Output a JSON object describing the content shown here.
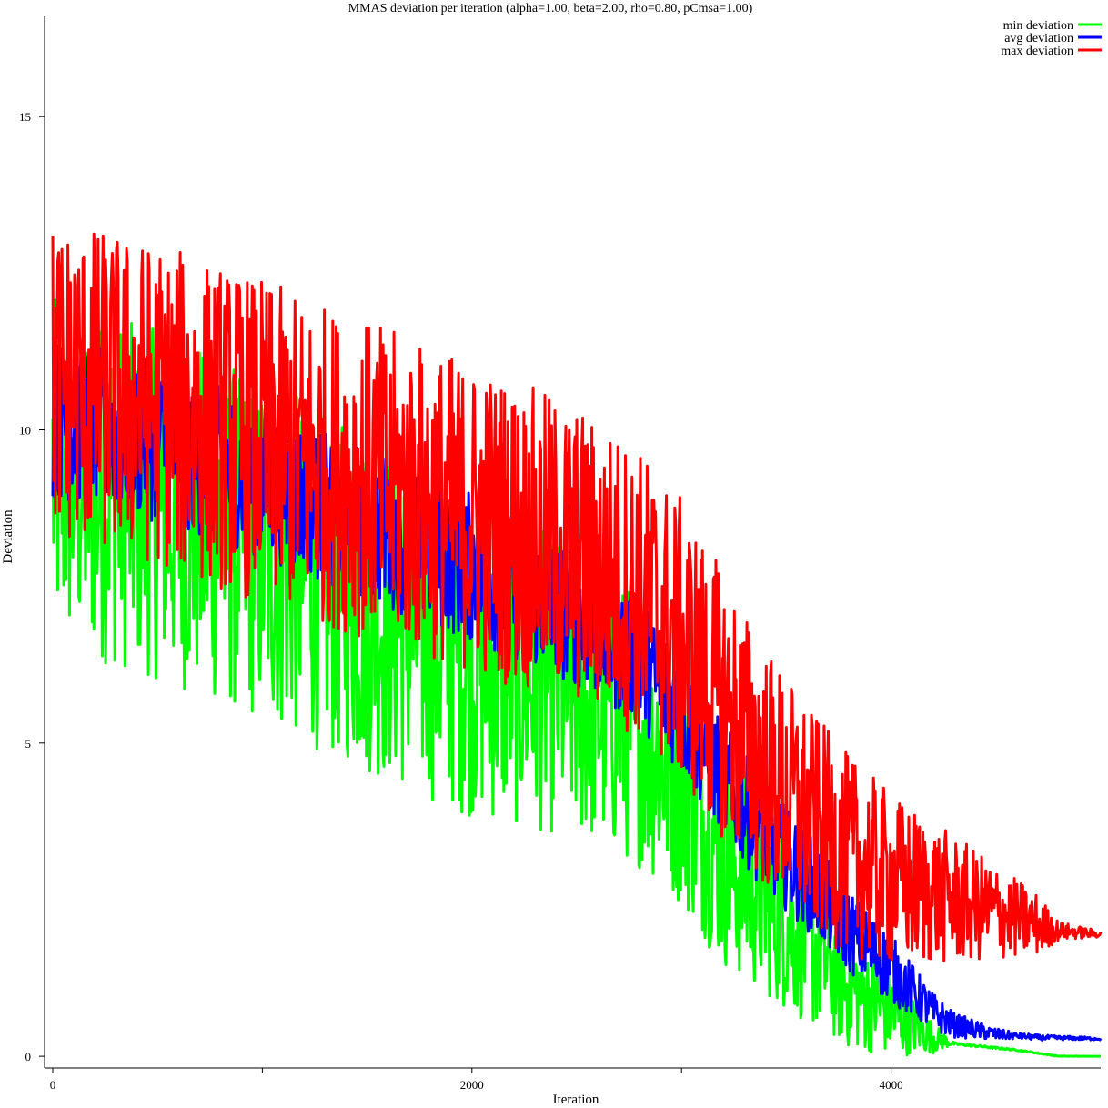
{
  "chart_data": {
    "type": "line",
    "title": "MMAS deviation per iteration (alpha=1.00, beta=2.00, rho=0.80, pCmsa=1.00)",
    "xlabel": "Iteration",
    "ylabel": "Deviation",
    "xlim": [
      0,
      5000
    ],
    "ylim": [
      -0.1,
      16.6
    ],
    "x_ticks": [
      {
        "value": 0,
        "label": "0"
      },
      {
        "value": 1000,
        "label": ""
      },
      {
        "value": 2000,
        "label": "2000"
      },
      {
        "value": 3000,
        "label": ""
      },
      {
        "value": 4000,
        "label": "4000"
      }
    ],
    "y_ticks": [
      {
        "value": 0,
        "label": "0"
      },
      {
        "value": 5,
        "label": "5"
      },
      {
        "value": 10,
        "label": "10"
      },
      {
        "value": 15,
        "label": "15"
      }
    ],
    "grid": false,
    "legend_position": "top-right",
    "series": [
      {
        "name": "min deviation",
        "color": "#00ff00",
        "anchors": [
          [
            0,
            9.3
          ],
          [
            500,
            8.8
          ],
          [
            1000,
            8.1
          ],
          [
            1500,
            7.2
          ],
          [
            2000,
            6.4
          ],
          [
            2500,
            5.8
          ],
          [
            2800,
            5.2
          ],
          [
            3000,
            4.4
          ],
          [
            3200,
            3.2
          ],
          [
            3400,
            2.5
          ],
          [
            3600,
            1.8
          ],
          [
            3800,
            1.1
          ],
          [
            4000,
            0.7
          ],
          [
            4200,
            0.3
          ],
          [
            4300,
            0.2
          ],
          [
            4600,
            0.1
          ],
          [
            4800,
            0.0
          ],
          [
            5000,
            0.0
          ]
        ],
        "spread": [
          [
            0,
            2.8
          ],
          [
            1000,
            2.8
          ],
          [
            2000,
            2.6
          ],
          [
            2800,
            2.2
          ],
          [
            3200,
            1.8
          ],
          [
            3600,
            1.3
          ],
          [
            4000,
            0.7
          ],
          [
            4200,
            0.25
          ],
          [
            4300,
            0.02
          ],
          [
            5000,
            0.0
          ]
        ]
      },
      {
        "name": "avg deviation",
        "color": "#0000ff",
        "anchors": [
          [
            0,
            10.2
          ],
          [
            500,
            9.8
          ],
          [
            1000,
            9.2
          ],
          [
            1500,
            8.5
          ],
          [
            2000,
            7.8
          ],
          [
            2500,
            7.0
          ],
          [
            2800,
            6.3
          ],
          [
            3000,
            5.5
          ],
          [
            3200,
            4.4
          ],
          [
            3400,
            3.5
          ],
          [
            3600,
            2.8
          ],
          [
            3800,
            2.0
          ],
          [
            4000,
            1.4
          ],
          [
            4200,
            0.7
          ],
          [
            4300,
            0.5
          ],
          [
            4500,
            0.35
          ],
          [
            4700,
            0.3
          ],
          [
            5000,
            0.28
          ]
        ],
        "spread": [
          [
            0,
            1.3
          ],
          [
            2000,
            1.2
          ],
          [
            3000,
            1.0
          ],
          [
            3600,
            0.8
          ],
          [
            4000,
            0.55
          ],
          [
            4300,
            0.2
          ],
          [
            4600,
            0.05
          ],
          [
            5000,
            0.02
          ]
        ]
      },
      {
        "name": "max deviation",
        "color": "#ff0000",
        "anchors": [
          [
            0,
            10.8
          ],
          [
            500,
            10.4
          ],
          [
            1000,
            9.8
          ],
          [
            1500,
            9.2
          ],
          [
            2000,
            8.6
          ],
          [
            2500,
            8.0
          ],
          [
            2800,
            7.4
          ],
          [
            3000,
            6.6
          ],
          [
            3200,
            5.6
          ],
          [
            3400,
            4.6
          ],
          [
            3600,
            3.8
          ],
          [
            3800,
            3.2
          ],
          [
            4000,
            2.8
          ],
          [
            4200,
            2.6
          ],
          [
            4400,
            2.4
          ],
          [
            4600,
            2.2
          ],
          [
            4800,
            2.0
          ],
          [
            5000,
            1.95
          ]
        ],
        "spread": [
          [
            0,
            2.6
          ],
          [
            1000,
            2.6
          ],
          [
            2000,
            2.5
          ],
          [
            3000,
            2.3
          ],
          [
            3600,
            1.8
          ],
          [
            4000,
            1.4
          ],
          [
            4400,
            0.9
          ],
          [
            4700,
            0.5
          ],
          [
            4800,
            0.15
          ],
          [
            5000,
            0.05
          ]
        ]
      }
    ]
  }
}
